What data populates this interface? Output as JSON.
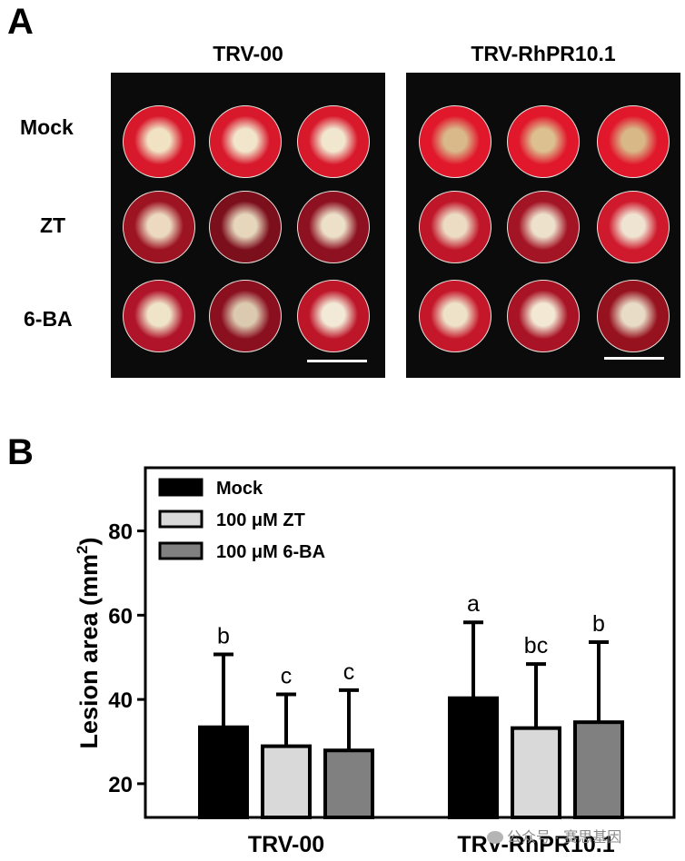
{
  "panel_a": {
    "label": "A",
    "columns": [
      "TRV-00",
      "TRV-RhPR10.1"
    ],
    "rows": [
      "Mock",
      "ZT",
      "6-BA"
    ],
    "discs": [
      [
        [
          "#d8192c",
          "#f0e2c2"
        ],
        [
          "#d8192c",
          "#f1e6cc"
        ],
        [
          "#d8192c",
          "#f1e7cf"
        ],
        [
          "#e1182c",
          "#d9b98a"
        ],
        [
          "#e1182c",
          "#dcc08f"
        ],
        [
          "#e1182c",
          "#d8b887"
        ]
      ],
      [
        [
          "#9c1322",
          "#ecd9c0"
        ],
        [
          "#7c0f1c",
          "#e5d6bc"
        ],
        [
          "#8d1120",
          "#ece0c8"
        ],
        [
          "#c0162a",
          "#ecdcc4"
        ],
        [
          "#a31425",
          "#ede1cc"
        ],
        [
          "#cf1a2d",
          "#efe4d2"
        ]
      ],
      [
        [
          "#b0142a",
          "#efe3c8"
        ],
        [
          "#8a1020",
          "#dccab0"
        ],
        [
          "#bd1629",
          "#f2e9d6"
        ],
        [
          "#c5172a",
          "#eee2c9"
        ],
        [
          "#a81426",
          "#f2e8d3"
        ],
        [
          "#96121f",
          "#e8dcc6"
        ]
      ]
    ]
  },
  "panel_b": {
    "label": "B"
  },
  "chart_data": {
    "type": "bar",
    "title": "",
    "xlabel": "",
    "ylabel": "Lesion area (mm²)",
    "ylabel_main": "Lesion area (mm",
    "ylabel_sup": "2",
    "ylabel_end": ")",
    "ylim": [
      12,
      95
    ],
    "yticks": [
      20,
      40,
      60,
      80
    ],
    "categories": [
      "TRV-00",
      "TRV-RhPR10.1"
    ],
    "legend_position": "top-left",
    "series": [
      {
        "name": "Mock",
        "color": "#000000",
        "values": [
          33.4,
          40.3
        ],
        "errors": [
          17.3,
          18.0
        ],
        "letters": [
          "b",
          "a"
        ]
      },
      {
        "name": "100 μM ZT",
        "color": "#d9d9d9",
        "values": [
          28.9,
          33.2
        ],
        "errors": [
          12.3,
          15.2
        ],
        "letters": [
          "c",
          "bc"
        ]
      },
      {
        "name": "100 μM 6-BA",
        "color": "#808080",
        "values": [
          27.9,
          34.6
        ],
        "errors": [
          14.3,
          19.0
        ],
        "letters": [
          "c",
          "b"
        ]
      }
    ]
  },
  "watermark": "公众号 · 赛思基因"
}
